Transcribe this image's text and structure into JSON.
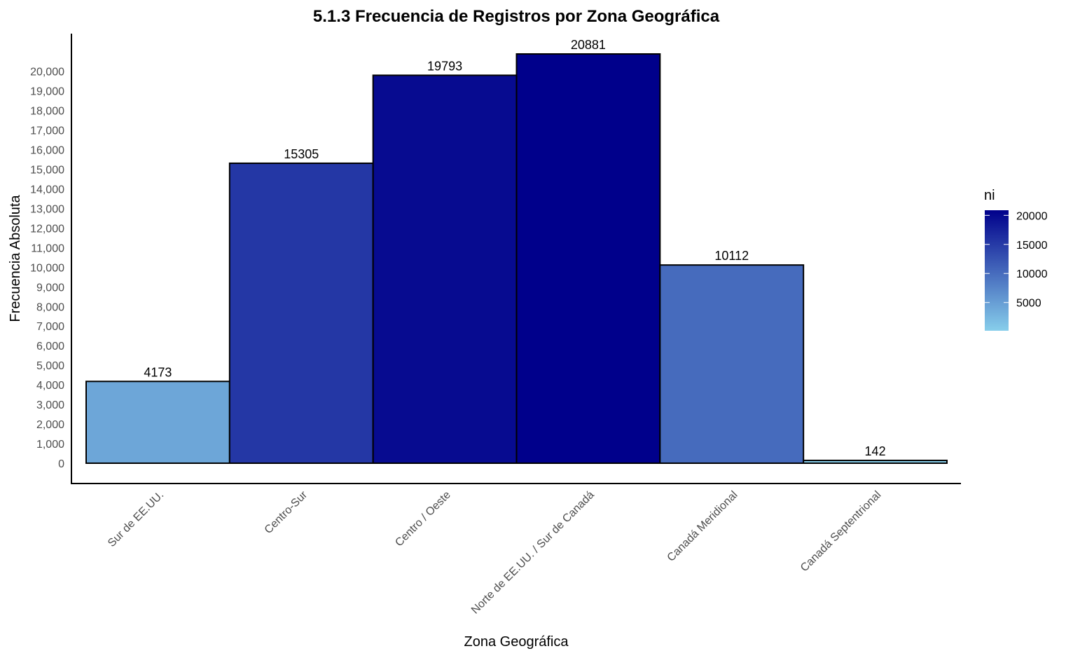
{
  "chart_data": {
    "type": "bar",
    "title": "5.1.3 Frecuencia de Registros por Zona Geográfica",
    "xlabel": "Zona Geográfica",
    "ylabel": "Frecuencia Absoluta",
    "categories": [
      "Sur de EE.UU.",
      "Centro-Sur",
      "Centro / Oeste",
      "Norte de EE.UU. / Sur de Canadá",
      "Canadá Meridional",
      "Canadá Septentrional"
    ],
    "values": [
      4173,
      15305,
      19793,
      20881,
      10112,
      142
    ],
    "data_labels": [
      "4173",
      "15305",
      "19793",
      "20881",
      "10112",
      "142"
    ],
    "ylim": [
      0,
      20881
    ],
    "y_ticks": [
      0,
      1000,
      2000,
      3000,
      4000,
      5000,
      6000,
      7000,
      8000,
      9000,
      10000,
      11000,
      12000,
      13000,
      14000,
      15000,
      16000,
      17000,
      18000,
      19000,
      20000
    ],
    "y_tick_labels": [
      "0",
      "1,000",
      "2,000",
      "3,000",
      "4,000",
      "5,000",
      "6,000",
      "7,000",
      "8,000",
      "9,000",
      "10,000",
      "11,000",
      "12,000",
      "13,000",
      "14,000",
      "15,000",
      "16,000",
      "17,000",
      "18,000",
      "19,000",
      "20,000"
    ],
    "grid": false,
    "legend": {
      "title": "ni",
      "placement": "right",
      "type": "colorbar",
      "ticks": [
        5000,
        10000,
        15000,
        20000
      ],
      "tick_labels": [
        "5000",
        "10000",
        "15000",
        "20000"
      ]
    },
    "colors": {
      "low": "#87ceeb",
      "high": "#00008b",
      "bar_outline": "#000000",
      "axis": "#000000"
    }
  }
}
